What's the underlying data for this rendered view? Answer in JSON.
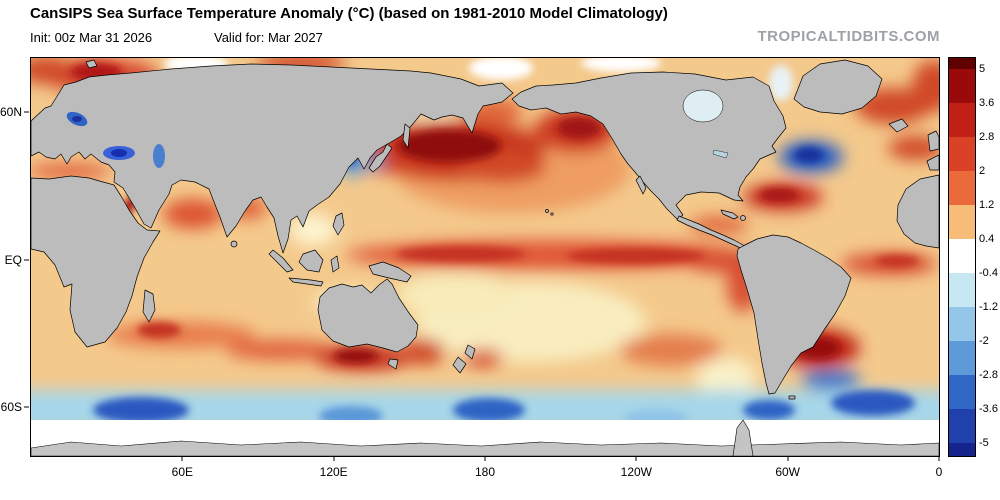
{
  "header": {
    "title": "CanSIPS Sea Surface Temperature Anomaly (°C) (based on 1981-2010 Model Climatology)",
    "init_label": "Init: 00z Mar 31 2026",
    "valid_label": "Valid for: Mar 2027",
    "watermark": "TROPICALTIDBITS.COM"
  },
  "map": {
    "y_axis_labels": [
      "60N",
      "EQ",
      "60S"
    ],
    "x_axis_labels": [
      "60E",
      "120E",
      "180",
      "120W",
      "60W",
      "0"
    ]
  },
  "colorbar": {
    "tick_labels": [
      "5",
      "3.6",
      "2.8",
      "2",
      "1.2",
      "0.4",
      "-0.4",
      "-1.2",
      "-2",
      "-2.8",
      "-3.6",
      "-5"
    ],
    "band_colors": [
      "#600000",
      "#9a0a0a",
      "#c02016",
      "#d94226",
      "#ea6a3c",
      "#f7bd78",
      "#ffffff",
      "#c7e7f2",
      "#93c6e8",
      "#5e9ad8",
      "#3168c6",
      "#2040ae",
      "#15238c"
    ]
  },
  "colors": {
    "land": "#bcbcbc",
    "coastline": "#000000",
    "ocean_base": "#f4c98c",
    "watermark_gray": "#9ea1a6"
  }
}
